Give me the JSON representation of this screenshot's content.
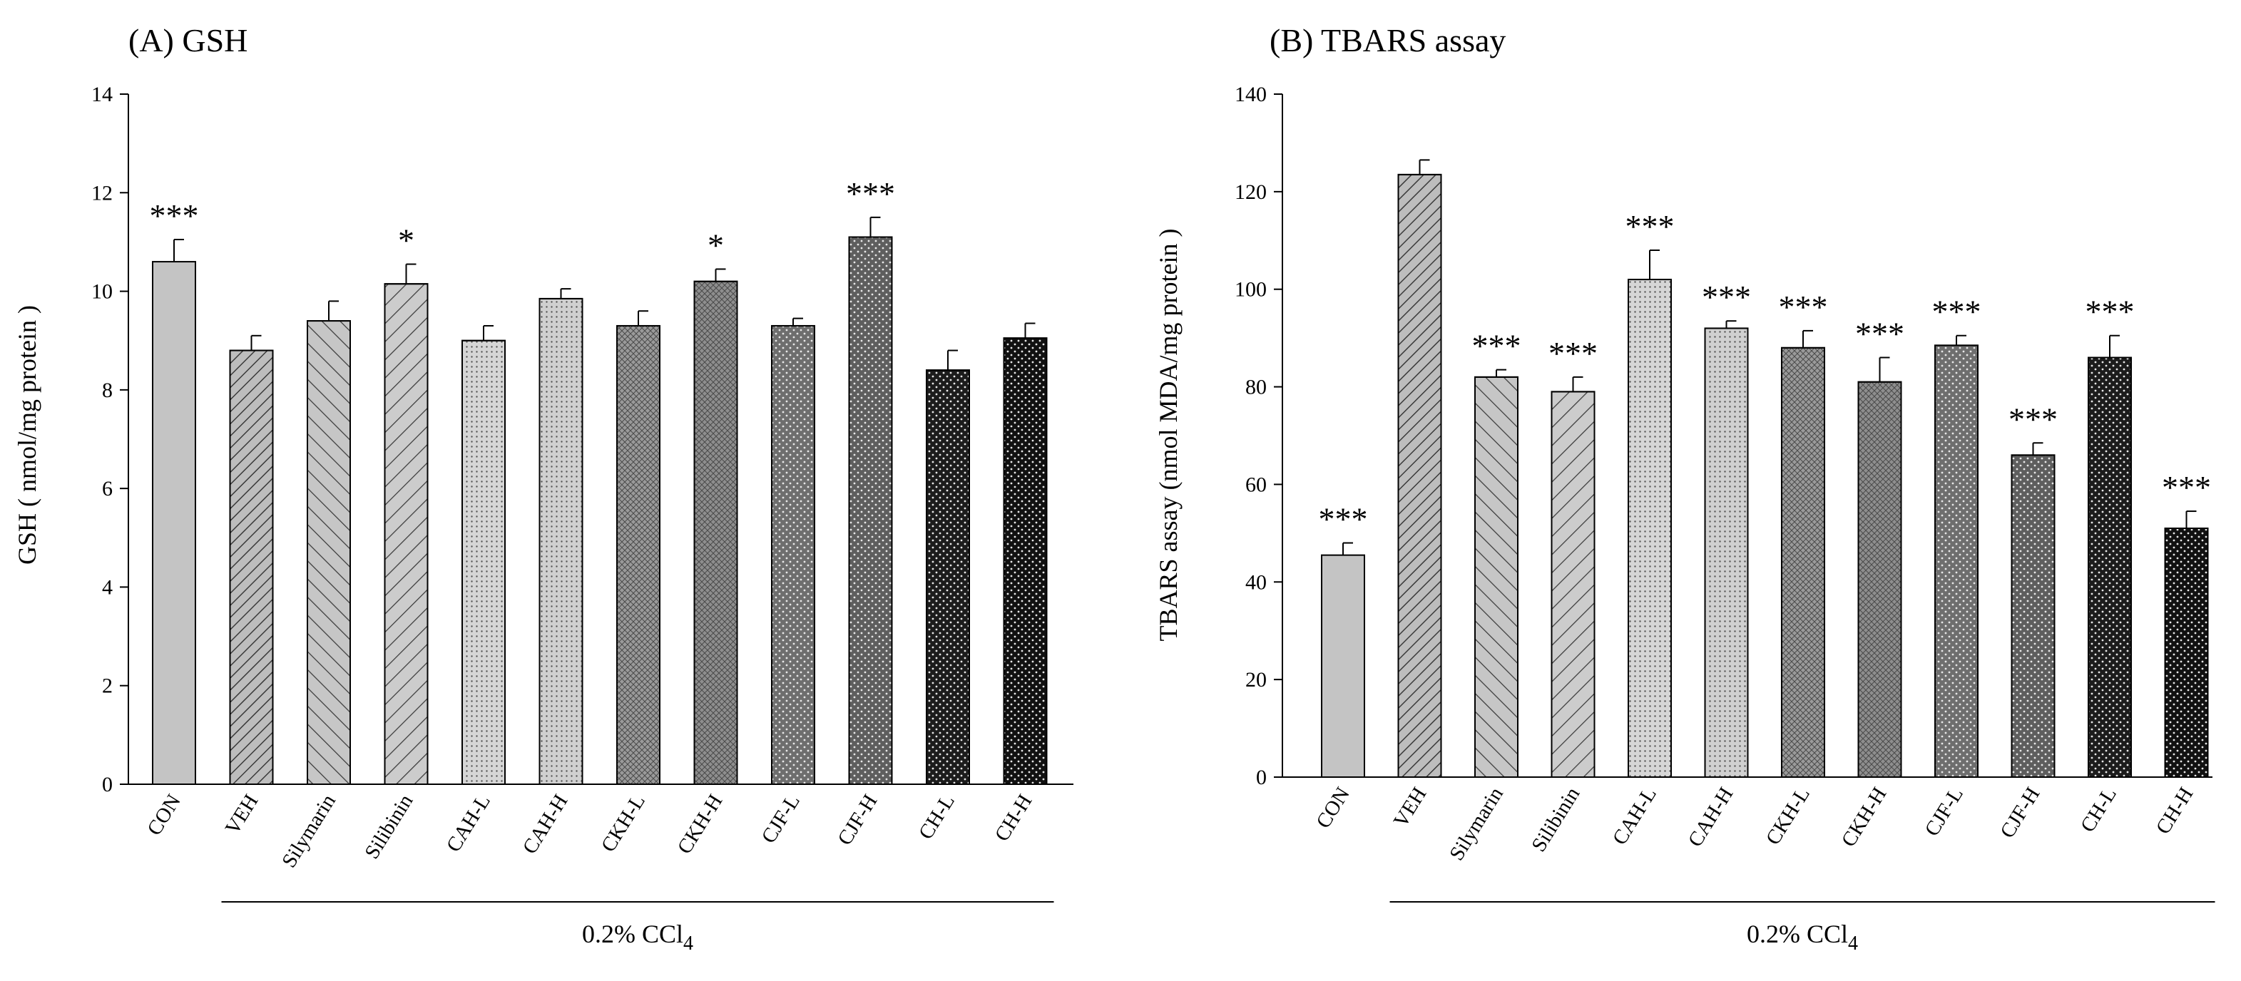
{
  "chart_data": [
    {
      "type": "bar",
      "panel_title": "(A) GSH",
      "ylabel": "GSH ( nmol/mg protein )",
      "ylim": [
        0,
        14
      ],
      "yticks": [
        "0",
        "2",
        "4",
        "6",
        "8",
        "10",
        "12",
        "14"
      ],
      "categories": [
        "CON",
        "VEH",
        "Silymarin",
        "Silibinin",
        "CAH-L",
        "CAH-H",
        "CKH-L",
        "CKH-H",
        "CJF-L",
        "CJF-H",
        "CH-L",
        "CH-H"
      ],
      "values": [
        10.6,
        8.8,
        9.4,
        10.15,
        9.0,
        9.85,
        9.3,
        10.2,
        9.3,
        11.1,
        8.4,
        9.05
      ],
      "errors": [
        0.45,
        0.3,
        0.4,
        0.4,
        0.3,
        0.2,
        0.3,
        0.25,
        0.15,
        0.4,
        0.4,
        0.3
      ],
      "significance": [
        "***",
        "",
        "",
        "*",
        "",
        "",
        "",
        "*",
        "",
        "***",
        "",
        ""
      ],
      "group_label": "0.2% CCl",
      "group_label_sub": "4",
      "group_start": "VEH",
      "group_end": "CH-H"
    },
    {
      "type": "bar",
      "panel_title": "(B) TBARS assay",
      "ylabel": "TBARS assay (nmol MDA/mg protein )",
      "ylim": [
        0,
        140
      ],
      "yticks": [
        "0",
        "20",
        "40",
        "60",
        "80",
        "100",
        "120",
        "140"
      ],
      "categories": [
        "CON",
        "VEH",
        "Silymarin",
        "Silibinin",
        "CAH-L",
        "CAH-H",
        "CKH-L",
        "CKH-H",
        "CJF-L",
        "CJF-H",
        "CH-L",
        "CH-H"
      ],
      "values": [
        45.5,
        123.5,
        82,
        79,
        102,
        92,
        88,
        81,
        88.5,
        66,
        86,
        51
      ],
      "errors": [
        2.5,
        3,
        1.5,
        3,
        6,
        1.5,
        3.5,
        5,
        2,
        2.5,
        4.5,
        3.5
      ],
      "significance": [
        "***",
        "",
        "***",
        "***",
        "***",
        "***",
        "***",
        "***",
        "***",
        "***",
        "***",
        "***"
      ],
      "group_label": "0.2% CCl",
      "group_label_sub": "4",
      "group_start": "VEH",
      "group_end": "CH-H"
    }
  ],
  "bar_styles": [
    {
      "fill": "#c4c4c4",
      "pattern": "none"
    },
    {
      "fill": "#bdbdbd",
      "pattern": "diag-right-dense"
    },
    {
      "fill": "#c6c6c6",
      "pattern": "diag-left"
    },
    {
      "fill": "#cccccc",
      "pattern": "diag-right"
    },
    {
      "fill": "#d6d6d6",
      "pattern": "dots-fine"
    },
    {
      "fill": "#d0d0d0",
      "pattern": "dots-fine"
    },
    {
      "fill": "#9a9a9a",
      "pattern": "crosshatch"
    },
    {
      "fill": "#8e8e8e",
      "pattern": "crosshatch"
    },
    {
      "fill": "#6e6e6e",
      "pattern": "dots-light"
    },
    {
      "fill": "#5e5e5e",
      "pattern": "dots-light"
    },
    {
      "fill": "#1c1c1c",
      "pattern": "dots-light"
    },
    {
      "fill": "#111111",
      "pattern": "dots-light"
    }
  ]
}
